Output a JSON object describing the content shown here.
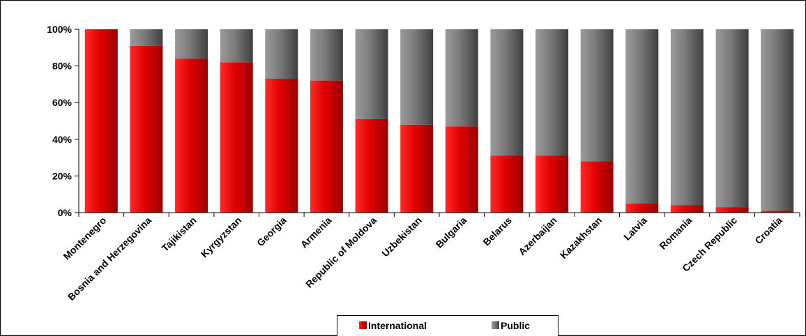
{
  "chart_data": {
    "type": "bar",
    "stacked": true,
    "percent": true,
    "categories": [
      "Montenegro",
      "Bosnia and Herzegovina",
      "Tajikistan",
      "Kyrgyzstan",
      "Georgia",
      "Armenia",
      "Republic of Moldova",
      "Uzbekistan",
      "Bulgaria",
      "Belarus",
      "Azerbaijan",
      "Kazakhstan",
      "Latvia",
      "Romania",
      "Czech Republic",
      "Croatia"
    ],
    "series": [
      {
        "name": "International",
        "color": "#e00000",
        "values": [
          100,
          91,
          84,
          82,
          73,
          72,
          51,
          48,
          47,
          31,
          31,
          28,
          5,
          4,
          3,
          1
        ]
      },
      {
        "name": "Public",
        "color": "#7f7f7f",
        "values": [
          0,
          9,
          16,
          18,
          27,
          28,
          49,
          52,
          53,
          69,
          69,
          72,
          95,
          96,
          97,
          99
        ]
      }
    ],
    "y_ticks": [
      "0%",
      "20%",
      "40%",
      "60%",
      "80%",
      "100%"
    ],
    "ylim": [
      0,
      100
    ],
    "grid": false,
    "legend_position": "bottom"
  }
}
